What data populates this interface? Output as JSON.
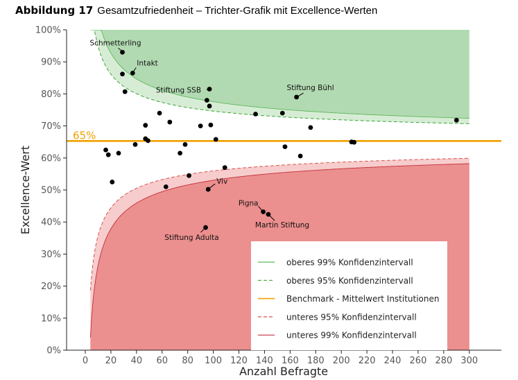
{
  "title": {
    "number": "Abbildung 17",
    "text": "Gesamtzufriedenheit – Trichter-Grafik mit Excellence-Werten"
  },
  "chart_data": {
    "type": "scatter",
    "xlabel": "Anzahl Befragte",
    "ylabel": "Excellence-Wert",
    "xlim": [
      -15,
      325
    ],
    "ylim": [
      0,
      100
    ],
    "x_ticks": [
      0,
      20,
      40,
      60,
      80,
      100,
      120,
      140,
      160,
      180,
      200,
      220,
      240,
      260,
      280,
      300
    ],
    "x_tick_labels": [
      "0",
      "20",
      "40",
      "60",
      "80",
      "100",
      "120",
      "140",
      "160",
      "180",
      "200",
      "220",
      "240",
      "260",
      "280",
      "300"
    ],
    "y_ticks": [
      0,
      10,
      20,
      30,
      40,
      50,
      60,
      70,
      80,
      90,
      100
    ],
    "y_tick_labels": [
      "0%",
      "10%",
      "20%",
      "30%",
      "40%",
      "50%",
      "60%",
      "70%",
      "80%",
      "90%",
      "100%"
    ],
    "benchmark": {
      "value": 65.3,
      "label": "65%",
      "color": "#f0a000"
    },
    "colors": {
      "upper_99_fill": "#b2dab2",
      "upper_95_fill": "#d7ecd5",
      "upper_99_line": "#5cb85c",
      "upper_95_line": "#3aa53a",
      "lower_99_fill": "#ec8f8f",
      "lower_95_fill": "#f7cccc",
      "lower_99_line": "#c0303a",
      "lower_95_line": "#d9534f",
      "points": "#000000"
    },
    "funnel": {
      "x_start": 4,
      "x_end": 300
    },
    "points": [
      {
        "x": 29,
        "y": 93,
        "label": "Schmetterling"
      },
      {
        "x": 37,
        "y": 86.5,
        "label": "Intakt"
      },
      {
        "x": 29,
        "y": 86.2
      },
      {
        "x": 31,
        "y": 80.7
      },
      {
        "x": 97,
        "y": 81.5,
        "label": "Stiftung SSB"
      },
      {
        "x": 95,
        "y": 78
      },
      {
        "x": 97,
        "y": 76.2
      },
      {
        "x": 165,
        "y": 79,
        "label": "Stiftung Bühl"
      },
      {
        "x": 58,
        "y": 74
      },
      {
        "x": 133,
        "y": 73.7
      },
      {
        "x": 154,
        "y": 74
      },
      {
        "x": 290,
        "y": 71.8
      },
      {
        "x": 66,
        "y": 71.2
      },
      {
        "x": 47,
        "y": 70.2
      },
      {
        "x": 90,
        "y": 70
      },
      {
        "x": 98,
        "y": 70.3
      },
      {
        "x": 176,
        "y": 69.5
      },
      {
        "x": 47,
        "y": 66
      },
      {
        "x": 49,
        "y": 65.4
      },
      {
        "x": 102,
        "y": 65.8
      },
      {
        "x": 208,
        "y": 65
      },
      {
        "x": 210,
        "y": 64.9
      },
      {
        "x": 39,
        "y": 64.2
      },
      {
        "x": 78,
        "y": 64.2
      },
      {
        "x": 156,
        "y": 63.5
      },
      {
        "x": 16,
        "y": 62.5
      },
      {
        "x": 74,
        "y": 61.5
      },
      {
        "x": 26,
        "y": 61.5
      },
      {
        "x": 18,
        "y": 61
      },
      {
        "x": 168,
        "y": 60.6
      },
      {
        "x": 109,
        "y": 57
      },
      {
        "x": 81,
        "y": 54.5
      },
      {
        "x": 21,
        "y": 52.5
      },
      {
        "x": 63,
        "y": 51
      },
      {
        "x": 96,
        "y": 50.2,
        "label": "Viv"
      },
      {
        "x": 139,
        "y": 43.2,
        "label": "Pigna"
      },
      {
        "x": 143,
        "y": 42.4,
        "label": "Martin Stiftung"
      },
      {
        "x": 94,
        "y": 38.3,
        "label": "Stiftung Adulta"
      }
    ],
    "legend": {
      "position": "bottom-right",
      "entries": [
        {
          "label": "oberes 99% Konfidenzintervall",
          "color": "#5cb85c",
          "style": "solid"
        },
        {
          "label": "oberes 95% Konfidenzintervall",
          "color": "#3aa53a",
          "style": "dashed"
        },
        {
          "label": "Benchmark - Mittelwert Institutionen",
          "color": "#f0a000",
          "style": "solid"
        },
        {
          "label": "unteres 95% Konfidenzintervall",
          "color": "#d9534f",
          "style": "dashed"
        },
        {
          "label": "unteres 99% Konfidenzintervall",
          "color": "#c0303a",
          "style": "solid"
        }
      ]
    }
  }
}
